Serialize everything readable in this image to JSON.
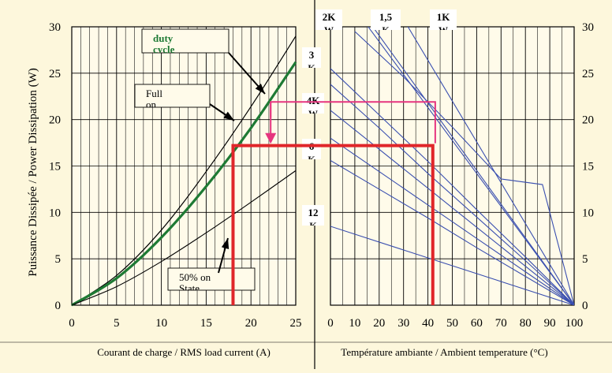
{
  "chart_data": [
    {
      "type": "line",
      "xlabel": "Courant de charge / RMS load current (A)",
      "ylabel": "Puissance Dissipée / Power Dissipation (W)",
      "xlim": [
        0,
        25
      ],
      "ylim": [
        0,
        30
      ],
      "x_ticks": [
        "0",
        "5",
        "10",
        "15",
        "20",
        "25"
      ],
      "y_ticks": [
        "0",
        "5",
        "10",
        "15",
        "20",
        "25",
        "30"
      ],
      "grid": true,
      "series": [
        {
          "name": "Full on",
          "color": "#000000",
          "x": [
            0,
            5,
            10,
            15,
            20,
            25
          ],
          "y": [
            0,
            3.2,
            8.1,
            14.4,
            21.4,
            29.0
          ]
        },
        {
          "name": "duty cycle",
          "color": "#1e7a34",
          "x": [
            0,
            5,
            10,
            15,
            20,
            25
          ],
          "y": [
            0,
            2.9,
            7.3,
            12.8,
            19.1,
            26.2
          ]
        },
        {
          "name": "50% on State",
          "color": "#000000",
          "x": [
            0,
            5,
            10,
            15,
            20,
            25
          ],
          "y": [
            0,
            2.0,
            4.7,
            7.8,
            11.1,
            14.5
          ]
        }
      ],
      "annotations": [
        {
          "text": "duty cycle"
        },
        {
          "text": "Full on"
        },
        {
          "text": "50% on State"
        }
      ],
      "example_reading": {
        "current": 18,
        "power": 17.2
      }
    },
    {
      "type": "line",
      "xlabel": "Température ambiante / Ambient temperature (°C)",
      "x_ticks": [
        "0",
        "10",
        "20",
        "30",
        "40",
        "50",
        "60",
        "70",
        "80",
        "90",
        "100"
      ],
      "y_ticks": [
        "0",
        "5",
        "10",
        "15",
        "20",
        "25",
        "30"
      ],
      "xlim": [
        0,
        100
      ],
      "ylim": [
        0,
        30
      ],
      "grid": true,
      "line_color": "#3a4fb0",
      "series": [
        {
          "name": "2K",
          "x": [
            0,
            100
          ],
          "y": [
            35.5,
            0
          ]
        },
        {
          "name": "1,5",
          "x": [
            5,
            100
          ],
          "y": [
            34.5,
            0
          ]
        },
        {
          "name": "1K",
          "x": [
            25,
            100
          ],
          "y": [
            33.0,
            0
          ]
        },
        {
          "name": "",
          "x": [
            10,
            30,
            50,
            70,
            87,
            100
          ],
          "y": [
            29.5,
            24.6,
            19.2,
            13.6,
            13.0,
            0
          ]
        },
        {
          "name": "3",
          "x": [
            0,
            20,
            40,
            60,
            80,
            100
          ],
          "y": [
            25.5,
            20.5,
            15.5,
            10.3,
            5.2,
            0
          ]
        },
        {
          "name": "",
          "x": [
            0,
            20,
            40,
            60,
            80,
            100
          ],
          "y": [
            23.8,
            19.1,
            14.2,
            9.5,
            4.8,
            0
          ]
        },
        {
          "name": "4K",
          "x": [
            0,
            20,
            40,
            60,
            80,
            100
          ],
          "y": [
            21.0,
            16.8,
            12.6,
            8.4,
            4.2,
            0
          ]
        },
        {
          "name": "",
          "x": [
            0,
            20,
            40,
            60,
            80,
            100
          ],
          "y": [
            18.0,
            14.4,
            10.8,
            7.2,
            3.6,
            0
          ]
        },
        {
          "name": "6",
          "x": [
            0,
            20,
            40,
            60,
            80,
            100
          ],
          "y": [
            15.6,
            12.5,
            9.4,
            6.2,
            3.1,
            0
          ]
        },
        {
          "name": "12",
          "x": [
            0,
            40,
            100
          ],
          "y": [
            8.5,
            5.1,
            0
          ]
        }
      ],
      "annotations": [
        {
          "text": "2K",
          "sub": "W"
        },
        {
          "text": "1,5",
          "sub": "K"
        },
        {
          "text": "1K",
          "sub": "W"
        },
        {
          "text": "3",
          "sub": "K"
        },
        {
          "text": "4K",
          "sub": "W"
        },
        {
          "text": "6",
          "sub": "K"
        },
        {
          "text": "12",
          "sub": "K"
        }
      ],
      "example_reading": {
        "temperature": 42,
        "power": 17.2
      }
    }
  ]
}
